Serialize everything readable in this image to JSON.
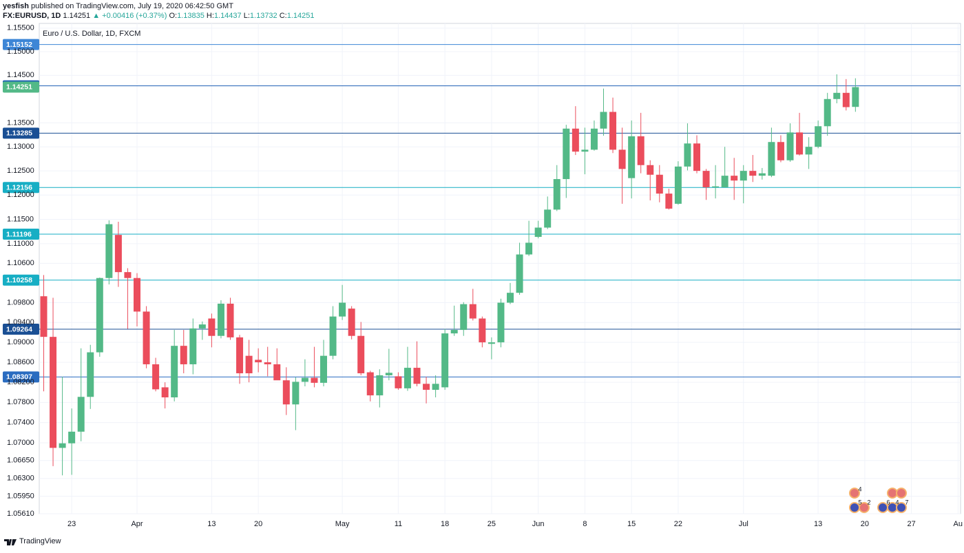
{
  "header": {
    "publisher": "yesfish",
    "published": "published on TradingView.com, July 19, 2020 06:42:50 GMT",
    "symbol": "FX:EURUSD, 1D",
    "change": "▲ +0.00416 (+0.37%)",
    "o": "O:",
    "h": "H:",
    "l": "L:",
    "c": "C:"
  },
  "chart_data": {
    "type": "candlestick",
    "title": "Euro / U.S. Dollar, 1D, FXCM",
    "x": [
      "2020-03-18",
      "2020-03-19",
      "2020-03-20",
      "2020-03-23",
      "2020-03-24",
      "2020-03-25",
      "2020-03-26",
      "2020-03-27",
      "2020-03-30",
      "2020-03-31",
      "2020-04-01",
      "2020-04-02",
      "2020-04-03",
      "2020-04-06",
      "2020-04-07",
      "2020-04-08",
      "2020-04-09",
      "2020-04-10",
      "2020-04-13",
      "2020-04-14",
      "2020-04-15",
      "2020-04-16",
      "2020-04-17",
      "2020-04-20",
      "2020-04-21",
      "2020-04-22",
      "2020-04-23",
      "2020-04-24",
      "2020-04-27",
      "2020-04-28",
      "2020-04-29",
      "2020-04-30",
      "2020-05-01",
      "2020-05-04",
      "2020-05-05",
      "2020-05-06",
      "2020-05-07",
      "2020-05-08",
      "2020-05-11",
      "2020-05-12",
      "2020-05-13",
      "2020-05-14",
      "2020-05-15",
      "2020-05-18",
      "2020-05-19",
      "2020-05-20",
      "2020-05-21",
      "2020-05-22",
      "2020-05-25",
      "2020-05-26",
      "2020-05-27",
      "2020-05-28",
      "2020-05-29",
      "2020-06-01",
      "2020-06-02",
      "2020-06-03",
      "2020-06-04",
      "2020-06-05",
      "2020-06-08",
      "2020-06-09",
      "2020-06-10",
      "2020-06-11",
      "2020-06-12",
      "2020-06-15",
      "2020-06-16",
      "2020-06-17",
      "2020-06-18",
      "2020-06-19",
      "2020-06-22",
      "2020-06-23",
      "2020-06-24",
      "2020-06-25",
      "2020-06-26",
      "2020-06-29",
      "2020-06-30",
      "2020-07-01",
      "2020-07-02",
      "2020-07-03",
      "2020-07-06",
      "2020-07-07",
      "2020-07-08",
      "2020-07-09",
      "2020-07-10",
      "2020-07-13",
      "2020-07-14",
      "2020-07-15",
      "2020-07-16",
      "2020-07-17"
    ],
    "open": [
      1.0993,
      1.0911,
      1.069,
      1.0699,
      1.0722,
      1.0791,
      1.088,
      1.103,
      1.1118,
      1.1042,
      1.103,
      1.0962,
      1.0856,
      1.081,
      1.079,
      1.0893,
      1.0856,
      1.0928,
      1.0948,
      1.0913,
      1.0978,
      1.091,
      1.0873,
      1.0865,
      1.086,
      1.0856,
      1.0824,
      1.0776,
      1.0821,
      1.0829,
      1.0819,
      1.0873,
      1.0952,
      1.0968,
      1.0913,
      1.084,
      1.0794,
      1.0834,
      1.0832,
      1.0808,
      1.0849,
      1.0817,
      1.0805,
      1.081,
      1.0918,
      1.0925,
      1.0977,
      1.0948,
      1.0897,
      1.09,
      1.098,
      1.1,
      1.1078,
      1.1114,
      1.1133,
      1.117,
      1.1233,
      1.1338,
      1.129,
      1.1294,
      1.1338,
      1.1373,
      1.1294,
      1.1235,
      1.1322,
      1.1262,
      1.1242,
      1.1203,
      1.1182,
      1.1259,
      1.1307,
      1.125,
      1.1216,
      1.1216,
      1.124,
      1.123,
      1.125,
      1.124,
      1.124,
      1.131,
      1.1272,
      1.133,
      1.1284,
      1.13,
      1.1343,
      1.14,
      1.1413,
      1.13835
    ],
    "high": [
      1.1036,
      1.099,
      1.0831,
      1.0768,
      1.0888,
      1.0895,
      1.1031,
      1.1148,
      1.1145,
      1.105,
      1.104,
      1.0973,
      1.0869,
      1.082,
      1.0925,
      1.0925,
      1.0948,
      1.0942,
      1.0958,
      1.0985,
      1.099,
      1.0915,
      1.0905,
      1.0888,
      1.0891,
      1.0888,
      1.085,
      1.083,
      1.0866,
      1.0891,
      1.0905,
      1.0973,
      1.1016,
      1.0973,
      1.0941,
      1.0843,
      1.0846,
      1.0887,
      1.084,
      1.0891,
      1.0902,
      1.0831,
      1.0834,
      1.0927,
      1.0974,
      1.0981,
      1.1008,
      1.0952,
      1.091,
      1.0988,
      1.102,
      1.1102,
      1.1147,
      1.1147,
      1.1197,
      1.1262,
      1.1346,
      1.1385,
      1.134,
      1.1355,
      1.1422,
      1.1403,
      1.134,
      1.1355,
      1.1371,
      1.1272,
      1.1262,
      1.1213,
      1.127,
      1.1349,
      1.1324,
      1.1254,
      1.1262,
      1.13,
      1.1277,
      1.1262,
      1.1283,
      1.1256,
      1.134,
      1.1324,
      1.1349,
      1.1371,
      1.132,
      1.1355,
      1.1413,
      1.1452,
      1.1442,
      1.14437
    ],
    "low": [
      1.0802,
      1.0654,
      1.0636,
      1.0637,
      1.0703,
      1.0767,
      1.0871,
      1.1017,
      1.1012,
      1.0927,
      1.0932,
      1.0848,
      1.0802,
      1.0768,
      1.0782,
      1.0838,
      1.0836,
      1.0905,
      1.089,
      1.0908,
      1.0905,
      1.0817,
      1.082,
      1.084,
      1.0832,
      1.083,
      1.0755,
      1.0725,
      1.0812,
      1.081,
      1.0812,
      1.0866,
      1.0945,
      1.0906,
      1.0834,
      1.0782,
      1.077,
      1.0824,
      1.0805,
      1.0803,
      1.0812,
      1.0778,
      1.079,
      1.0805,
      1.0913,
      1.0913,
      1.0944,
      1.089,
      1.0866,
      1.089,
      1.0977,
      1.0996,
      1.1075,
      1.1111,
      1.113,
      1.1167,
      1.1194,
      1.1283,
      1.1243,
      1.1292,
      1.1323,
      1.1287,
      1.1182,
      1.1193,
      1.1245,
      1.1189,
      1.1185,
      1.117,
      1.118,
      1.1251,
      1.1245,
      1.119,
      1.1193,
      1.1216,
      1.119,
      1.1183,
      1.1227,
      1.1232,
      1.1237,
      1.1268,
      1.1269,
      1.1282,
      1.1254,
      1.1297,
      1.1323,
      1.1391,
      1.1376,
      1.13732
    ],
    "close": [
      1.0911,
      1.069,
      1.0699,
      1.0722,
      1.0791,
      1.088,
      1.103,
      1.114,
      1.1042,
      1.103,
      1.0962,
      1.0856,
      1.0806,
      1.079,
      1.0893,
      1.0856,
      1.0928,
      1.0936,
      1.0913,
      1.0978,
      1.091,
      1.0838,
      1.0838,
      1.086,
      1.0856,
      1.0824,
      1.0776,
      1.0821,
      1.0829,
      1.0819,
      1.0873,
      1.0952,
      1.098,
      1.0913,
      1.0838,
      1.0794,
      1.0834,
      1.0839,
      1.0808,
      1.0849,
      1.0817,
      1.0805,
      1.0817,
      1.0918,
      1.0925,
      1.0977,
      1.0948,
      1.09,
      1.09,
      1.098,
      1.1,
      1.1078,
      1.1102,
      1.1133,
      1.117,
      1.1233,
      1.1338,
      1.129,
      1.1294,
      1.1338,
      1.1373,
      1.1294,
      1.1254,
      1.1322,
      1.1262,
      1.1242,
      1.1203,
      1.1172,
      1.1259,
      1.1307,
      1.125,
      1.1216,
      1.1218,
      1.124,
      1.123,
      1.125,
      1.124,
      1.1245,
      1.131,
      1.1272,
      1.133,
      1.1284,
      1.13,
      1.1343,
      1.14,
      1.1413,
      1.1383,
      1.14251
    ],
    "up_color": "#53b987",
    "down_color": "#eb4d5c",
    "log": true,
    "grid": true,
    "ylim": [
      1.0561,
      1.156
    ],
    "yticks": [
      {
        "value": 1.155,
        "label": "1.15500"
      },
      {
        "value": 1.15,
        "label": "1.15000"
      },
      {
        "value": 1.145,
        "label": "1.14500"
      },
      {
        "value": 1.135,
        "label": "1.13500"
      },
      {
        "value": 1.13,
        "label": "1.13000"
      },
      {
        "value": 1.125,
        "label": "1.12500"
      },
      {
        "value": 1.12,
        "label": "1.12000"
      },
      {
        "value": 1.115,
        "label": "1.11500"
      },
      {
        "value": 1.11,
        "label": "1.11000"
      },
      {
        "value": 1.106,
        "label": "1.10600"
      },
      {
        "value": 1.098,
        "label": "1.09800"
      },
      {
        "value": 1.094,
        "label": "1.09400"
      },
      {
        "value": 1.09,
        "label": "1.09000"
      },
      {
        "value": 1.086,
        "label": "1.08600"
      },
      {
        "value": 1.082,
        "label": "1.08200"
      },
      {
        "value": 1.078,
        "label": "1.07800"
      },
      {
        "value": 1.074,
        "label": "1.07400"
      },
      {
        "value": 1.07,
        "label": "1.07000"
      },
      {
        "value": 1.0665,
        "label": "1.06650"
      },
      {
        "value": 1.063,
        "label": "1.06300"
      },
      {
        "value": 1.0595,
        "label": "1.05950"
      },
      {
        "value": 1.0561,
        "label": "1.05610"
      }
    ],
    "xticks": [
      {
        "value": "2020-03-23",
        "label": "23"
      },
      {
        "value": "2020-04-01",
        "label": "Apr"
      },
      {
        "value": "2020-04-13",
        "label": "13"
      },
      {
        "value": "2020-04-20",
        "label": "20"
      },
      {
        "value": "2020-05-01",
        "label": "May"
      },
      {
        "value": "2020-05-11",
        "label": "11"
      },
      {
        "value": "2020-05-18",
        "label": "18"
      },
      {
        "value": "2020-05-25",
        "label": "25"
      },
      {
        "value": "2020-06-01",
        "label": "Jun"
      },
      {
        "value": "2020-06-08",
        "label": "8"
      },
      {
        "value": "2020-06-15",
        "label": "15"
      },
      {
        "value": "2020-06-22",
        "label": "22"
      },
      {
        "value": "2020-07-01",
        "label": "Jul"
      },
      {
        "value": "2020-07-13",
        "label": "13"
      },
      {
        "value": "2020-07-20",
        "label": "20"
      },
      {
        "value": "2020-07-27",
        "label": "27"
      },
      {
        "value": "2020-08-03",
        "label": "Au"
      }
    ],
    "levels": [
      {
        "value": 1.15152,
        "color": "#3d86d6"
      },
      {
        "value": 1.14278,
        "color": "#1e5fb4"
      },
      {
        "value": 1.13285,
        "color": "#1a4f94"
      },
      {
        "value": 1.12156,
        "color": "#17aec4"
      },
      {
        "value": 1.11196,
        "color": "#17aec4"
      },
      {
        "value": 1.10258,
        "color": "#17aec4"
      },
      {
        "value": 1.09264,
        "color": "#1a4f94"
      },
      {
        "value": 1.08307,
        "color": "#2a6cc0"
      }
    ]
  },
  "events": [
    "4",
    "5",
    "2",
    "6",
    "4",
    "7"
  ],
  "footer": {
    "brand": "TradingView"
  }
}
